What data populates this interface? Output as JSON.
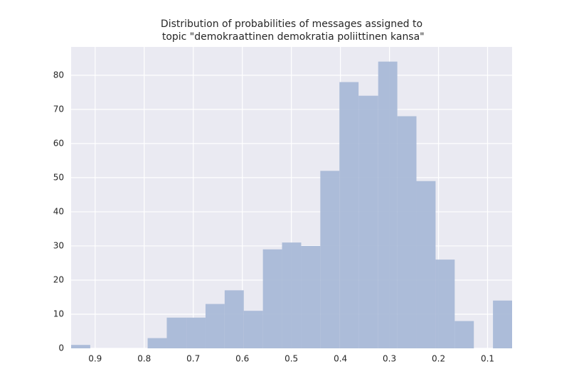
{
  "chart_data": {
    "type": "histogram",
    "title": [
      "Distribution of probabilities of messages assigned to",
      " topic \"demokraattinen demokratia poliittinen kansa\""
    ],
    "bins": [
      0.949,
      0.91,
      0.871,
      0.832,
      0.793,
      0.754,
      0.714,
      0.675,
      0.636,
      0.597,
      0.558,
      0.519,
      0.48,
      0.441,
      0.402,
      0.363,
      0.323,
      0.284,
      0.245,
      0.206,
      0.167,
      0.128,
      0.089,
      0.05
    ],
    "counts": [
      1,
      0,
      0,
      0,
      3,
      9,
      9,
      13,
      17,
      11,
      29,
      31,
      30,
      52,
      78,
      74,
      84,
      68,
      49,
      26,
      8,
      0,
      14
    ],
    "color": "#a9b9d7",
    "xlim": [
      0.949,
      0.05
    ],
    "xticks": [
      0.9,
      0.8,
      0.7,
      0.6,
      0.5,
      0.4,
      0.3,
      0.2,
      0.1
    ],
    "ylim": [
      0,
      88.3
    ],
    "yticks": [
      0,
      10,
      20,
      30,
      40,
      50,
      60,
      70,
      80
    ],
    "grid": true
  }
}
